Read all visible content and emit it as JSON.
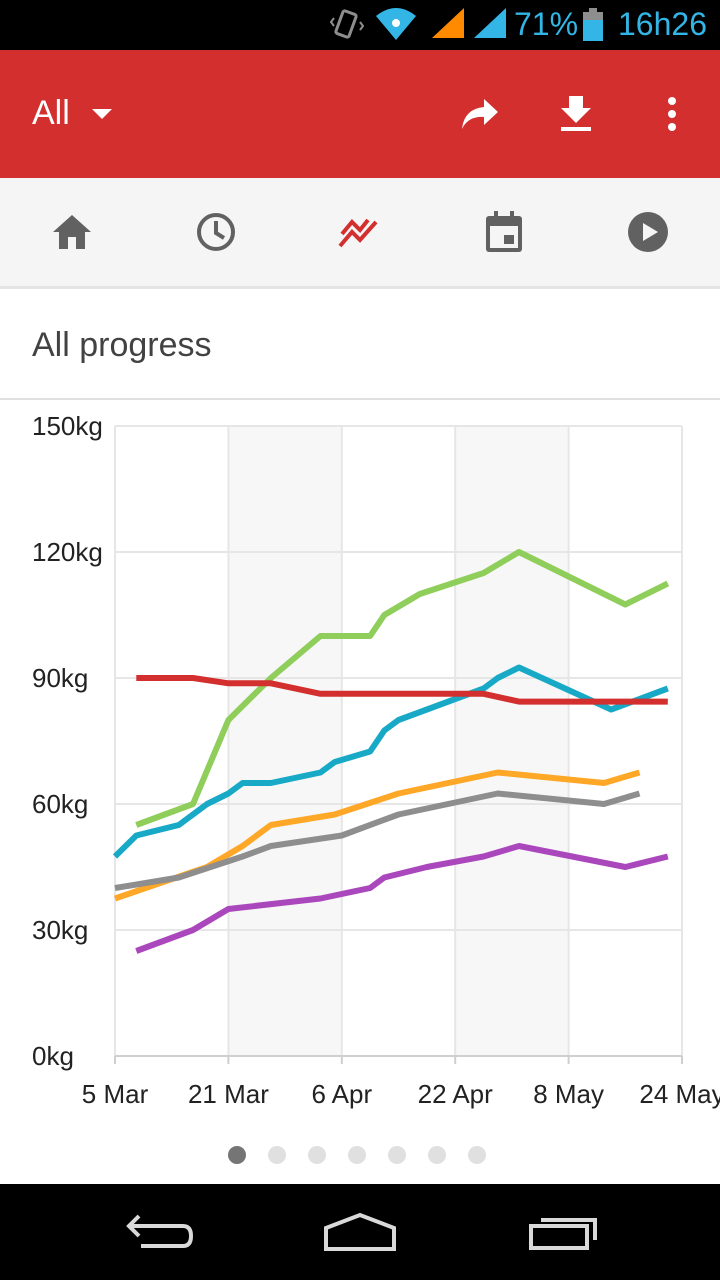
{
  "status_bar": {
    "battery": "71%",
    "time": "16h26"
  },
  "app_bar": {
    "filter_label": "All"
  },
  "card": {
    "title": "All progress"
  },
  "colors": {
    "app_bar": "#d32f2f",
    "tab_active": "#d32f2f",
    "tab_inactive": "#616161"
  },
  "tabs": [
    {
      "icon": "home-icon",
      "active": false
    },
    {
      "icon": "history-icon",
      "active": false
    },
    {
      "icon": "progress-chart-icon",
      "active": true
    },
    {
      "icon": "calendar-icon",
      "active": false
    },
    {
      "icon": "play-icon",
      "active": false
    }
  ],
  "pager": {
    "count": 7,
    "active": 0
  },
  "chart_data": {
    "type": "line",
    "x_start": "5 Mar",
    "x_ticks": [
      {
        "day": 0,
        "label": "5 Mar"
      },
      {
        "day": 16,
        "label": "21 Mar"
      },
      {
        "day": 32,
        "label": "6 Apr"
      },
      {
        "day": 48,
        "label": "22 Apr"
      },
      {
        "day": 64,
        "label": "8 May"
      },
      {
        "day": 80,
        "label": "24 May"
      }
    ],
    "y_ticks": [
      "0kg",
      "30kg",
      "60kg",
      "90kg",
      "120kg",
      "150kg"
    ],
    "ylim": [
      0,
      150
    ],
    "xlim_days": [
      0,
      80
    ],
    "grid": true,
    "series": [
      {
        "color": "#8fce5a",
        "points": [
          [
            3,
            55
          ],
          [
            11,
            60
          ],
          [
            16,
            80
          ],
          [
            22,
            90
          ],
          [
            29,
            100
          ],
          [
            36,
            100
          ],
          [
            38,
            105
          ],
          [
            43,
            110
          ],
          [
            52,
            115
          ],
          [
            57,
            120
          ],
          [
            72,
            107.5
          ],
          [
            78,
            112.5
          ]
        ]
      },
      {
        "color": "#17a9c6",
        "points": [
          [
            0,
            47.5
          ],
          [
            3,
            52.5
          ],
          [
            9,
            55
          ],
          [
            13,
            60
          ],
          [
            16,
            62.5
          ],
          [
            18,
            65
          ],
          [
            22,
            65
          ],
          [
            29,
            67.5
          ],
          [
            31,
            70
          ],
          [
            36,
            72.5
          ],
          [
            38,
            77.5
          ],
          [
            40,
            80
          ],
          [
            44,
            82.5
          ],
          [
            52,
            87.5
          ],
          [
            54,
            90
          ],
          [
            57,
            92.5
          ],
          [
            70,
            82.5
          ],
          [
            78,
            87.5
          ]
        ]
      },
      {
        "color": "#d32f2f",
        "points": [
          [
            3,
            90
          ],
          [
            11,
            90
          ],
          [
            16,
            88.75
          ],
          [
            22,
            88.75
          ],
          [
            29,
            86.25
          ],
          [
            52,
            86.25
          ],
          [
            57,
            84.38
          ],
          [
            78,
            84.38
          ]
        ]
      },
      {
        "color": "#ffa726",
        "points": [
          [
            0,
            37.5
          ],
          [
            13,
            45
          ],
          [
            18,
            50
          ],
          [
            22,
            55
          ],
          [
            31,
            57.5
          ],
          [
            40,
            62.5
          ],
          [
            54,
            67.5
          ],
          [
            69,
            65
          ],
          [
            74,
            67.5
          ]
        ]
      },
      {
        "color": "#8e8e8e",
        "points": [
          [
            0,
            40
          ],
          [
            9,
            42.5
          ],
          [
            18,
            47.5
          ],
          [
            22,
            50
          ],
          [
            32,
            52.5
          ],
          [
            40,
            57.5
          ],
          [
            54,
            62.5
          ],
          [
            69,
            60
          ],
          [
            74,
            62.5
          ]
        ]
      },
      {
        "color": "#ab47bc",
        "points": [
          [
            3,
            25
          ],
          [
            11,
            30
          ],
          [
            16,
            35
          ],
          [
            29,
            37.5
          ],
          [
            36,
            40
          ],
          [
            38,
            42.5
          ],
          [
            44,
            45
          ],
          [
            52,
            47.5
          ],
          [
            57,
            50
          ],
          [
            72,
            45
          ],
          [
            78,
            47.5
          ]
        ]
      }
    ]
  }
}
